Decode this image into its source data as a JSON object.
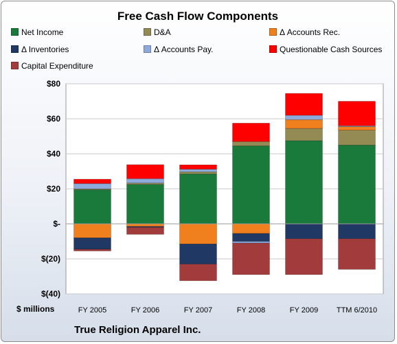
{
  "chart_data": {
    "type": "bar",
    "stacked": true,
    "title": "Free Cash Flow Components",
    "units_label": "$ millions",
    "footer": "True Religion Apparel Inc.",
    "categories": [
      "FY 2005",
      "FY 2006",
      "FY 2007",
      "FY 2008",
      "FY 2009",
      "TTM 6/2010"
    ],
    "ylim": [
      -40,
      80
    ],
    "yticks": [
      -40,
      -20,
      0,
      20,
      40,
      60,
      80
    ],
    "ytick_labels": [
      "$(40)",
      "$(20)",
      "$-",
      "$20",
      "$40",
      "$60",
      "$80"
    ],
    "grid": true,
    "legend_position": "top",
    "series": [
      {
        "name": "Net Income",
        "color": "#1a7a3c",
        "values": [
          19.5,
          22.5,
          28.5,
          44.5,
          47.5,
          45.0
        ]
      },
      {
        "name": "D&A",
        "color": "#948a54",
        "values": [
          0.5,
          0.8,
          1.2,
          2.5,
          7.0,
          8.5
        ]
      },
      {
        "name": "Δ Accounts Rec.",
        "color": "#f07f1e",
        "values": [
          -8.0,
          -1.5,
          -11.5,
          -5.5,
          5.0,
          2.0
        ]
      },
      {
        "name": "Δ Inventories",
        "color": "#1f3864",
        "values": [
          -6.5,
          -0.5,
          -11.5,
          -4.5,
          -8.5,
          -8.5
        ]
      },
      {
        "name": "Δ Accounts Pay.",
        "color": "#8eaadb",
        "values": [
          3.0,
          2.5,
          1.5,
          -1.0,
          2.5,
          0.5
        ]
      },
      {
        "name": "Questionable Cash Sources",
        "color": "#ff0000",
        "values": [
          2.5,
          8.0,
          2.5,
          10.5,
          12.5,
          14.0
        ]
      },
      {
        "name": "Capital Expenditure",
        "color": "#a23b3b",
        "values": [
          -1.0,
          -4.0,
          -9.5,
          -18.0,
          -20.5,
          -17.5
        ]
      }
    ]
  }
}
